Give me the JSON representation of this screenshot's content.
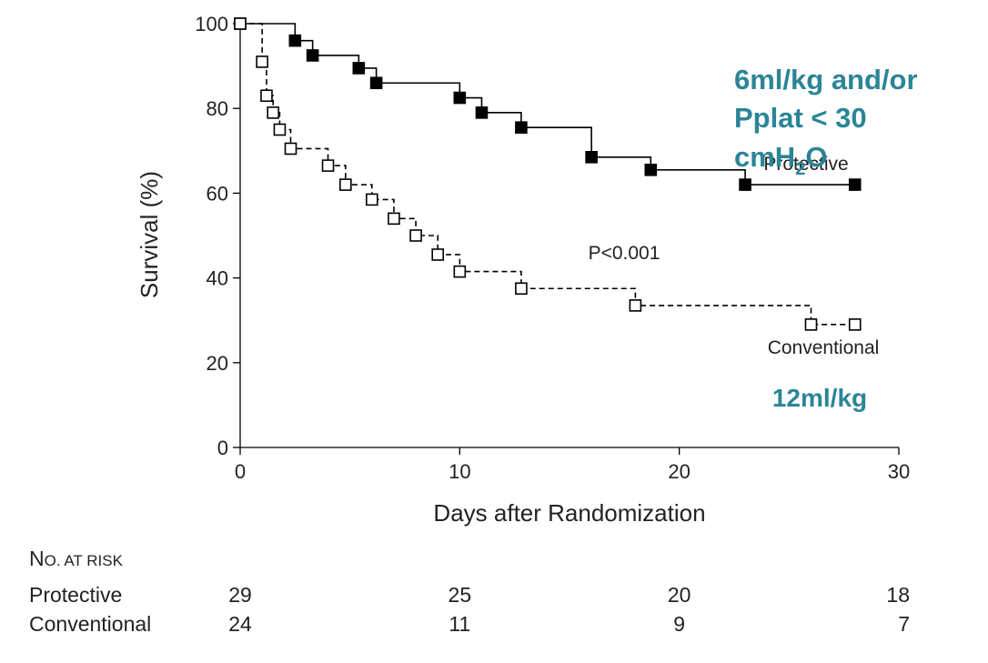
{
  "chart_data": {
    "type": "line",
    "title": "",
    "xlabel": "Days after Randomization",
    "ylabel": "Survival (%)",
    "xlim": [
      0,
      30
    ],
    "ylim": [
      0,
      100
    ],
    "x_ticks": [
      "0",
      "10",
      "20",
      "30"
    ],
    "y_ticks": [
      "0",
      "20",
      "40",
      "60",
      "80",
      "100"
    ],
    "grid": false,
    "series": [
      {
        "name": "Protective",
        "line_style": "solid",
        "marker": "filled-square",
        "points": [
          [
            0,
            100
          ],
          [
            2.5,
            96
          ],
          [
            3.3,
            92.5
          ],
          [
            5.4,
            89.5
          ],
          [
            6.2,
            86
          ],
          [
            10,
            82.5
          ],
          [
            11,
            79
          ],
          [
            12.8,
            75.5
          ],
          [
            16,
            68.5
          ],
          [
            18.7,
            65.5
          ],
          [
            23,
            62
          ],
          [
            28,
            62
          ]
        ]
      },
      {
        "name": "Conventional",
        "line_style": "dashed",
        "marker": "open-square",
        "points": [
          [
            0,
            100
          ],
          [
            1,
            91
          ],
          [
            1.2,
            83
          ],
          [
            1.5,
            79
          ],
          [
            1.8,
            75
          ],
          [
            2.3,
            70.5
          ],
          [
            4,
            66.5
          ],
          [
            4.8,
            62
          ],
          [
            6,
            58.5
          ],
          [
            7,
            54
          ],
          [
            8,
            50
          ],
          [
            9,
            45.5
          ],
          [
            10,
            41.5
          ],
          [
            12.8,
            37.5
          ],
          [
            18,
            33.5
          ],
          [
            26,
            29
          ],
          [
            28,
            29
          ]
        ]
      }
    ],
    "annotations": {
      "p_value": "P<0.001",
      "protective_label": "Protective",
      "conventional_label": "Conventional",
      "protective_note_line1": "6ml/kg and/or",
      "protective_note_line2": "Pplat < 30",
      "protective_note_line3_main": "cmH",
      "protective_note_line3_sub": "2",
      "protective_note_line3_end": "O",
      "conventional_note": "12ml/kg"
    },
    "colors": {
      "series": "#000000",
      "note": "#2b8596"
    },
    "risk_table": {
      "header": "No. at Risk",
      "days": [
        0,
        10,
        20,
        30
      ],
      "rows": [
        {
          "label": "Protective",
          "values": [
            "29",
            "25",
            "20",
            "18"
          ]
        },
        {
          "label": "Conventional",
          "values": [
            "24",
            "11",
            "9",
            "7"
          ]
        }
      ]
    }
  }
}
